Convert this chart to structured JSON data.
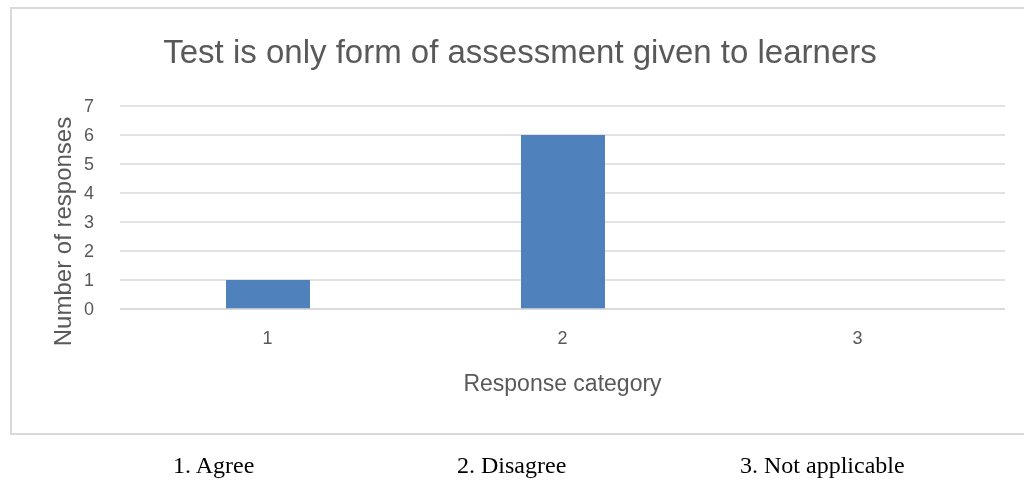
{
  "chart_data": {
    "type": "bar",
    "title": "Test is only form of assessment given to learners",
    "xlabel": "Response category",
    "ylabel": "Number of responses",
    "categories": [
      "1",
      "2",
      "3"
    ],
    "values": [
      1,
      6,
      0
    ],
    "color": "#4f81bd",
    "ylim": [
      0,
      7
    ],
    "yticks": [
      0,
      1,
      2,
      3,
      4,
      5,
      6,
      7
    ],
    "grid": "y",
    "annotations": [
      "1. Agree",
      "2. Disagree",
      "3. Not applicable"
    ]
  }
}
